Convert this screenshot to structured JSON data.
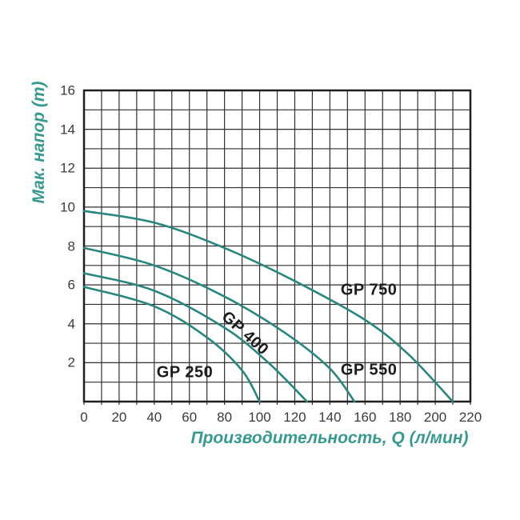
{
  "page": {
    "background": "#ffffff"
  },
  "chart_data": {
    "type": "line",
    "title": "",
    "xlabel": "Производительность, Q (л/мин)",
    "ylabel": "Мак. напор (m)",
    "xlim": [
      0,
      220
    ],
    "ylim": [
      0,
      16
    ],
    "x_major_ticks": [
      0,
      20,
      40,
      60,
      80,
      100,
      120,
      140,
      160,
      180,
      200,
      220
    ],
    "x_minor_step": 10,
    "y_major_ticks": [
      2,
      4,
      6,
      8,
      10,
      12,
      14,
      16
    ],
    "y_minor_step": 1,
    "grid": "minor-both-on",
    "legend_position": "labels-on-curves",
    "series": [
      {
        "name": "GP 250",
        "points": [
          [
            0,
            5.9
          ],
          [
            40,
            4.9
          ],
          [
            70,
            3.3
          ],
          [
            90,
            1.6
          ],
          [
            100,
            0
          ]
        ],
        "label": {
          "x": 57.4,
          "y": 1.48,
          "rotation": 0
        }
      },
      {
        "name": "GP 400",
        "points": [
          [
            0,
            6.6
          ],
          [
            40,
            5.7
          ],
          [
            80,
            3.8
          ],
          [
            105,
            2.0
          ],
          [
            127,
            0
          ]
        ],
        "label": {
          "x": 91.5,
          "y": 3.5,
          "rotation": 42
        }
      },
      {
        "name": "GP 550",
        "points": [
          [
            0,
            7.9
          ],
          [
            40,
            7.0
          ],
          [
            80,
            5.4
          ],
          [
            115,
            3.5
          ],
          [
            140,
            1.7
          ],
          [
            154,
            0
          ]
        ],
        "label": {
          "x": 162.2,
          "y": 1.62,
          "rotation": 0
        }
      },
      {
        "name": "GP 750",
        "points": [
          [
            0,
            9.8
          ],
          [
            40,
            9.2
          ],
          [
            80,
            7.9
          ],
          [
            120,
            6.2
          ],
          [
            160,
            4.2
          ],
          [
            185,
            2.4
          ],
          [
            210,
            0
          ]
        ],
        "label": {
          "x": 162.2,
          "y": 5.72,
          "rotation": 0
        }
      }
    ],
    "colors": {
      "curve": "#27877f",
      "axis_title_text": "#379a90",
      "grid_line": "#2f2f2f",
      "plot_border": "#1f1f1f",
      "tick_text": "#3b3b3b",
      "curve_label_text": "#1c1c1c",
      "background": "#ffffff"
    }
  }
}
